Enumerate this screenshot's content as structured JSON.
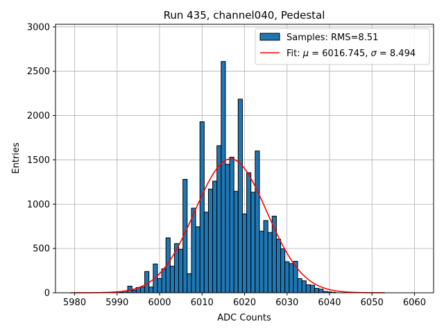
{
  "chart_data": {
    "type": "bar",
    "title": "Run 435, channel040, Pedestal",
    "xlabel": "ADC Counts",
    "ylabel": "Entries",
    "xlim": [
      5975.5,
      6064.5
    ],
    "ylim": [
      0,
      3030
    ],
    "xticks": [
      5980,
      5990,
      6000,
      6010,
      6020,
      6030,
      6040,
      6050,
      6060
    ],
    "yticks": [
      0,
      500,
      1000,
      1500,
      2000,
      2500,
      3000
    ],
    "grid": true,
    "legend_position": "top-right",
    "bar_color": "#1f77b4",
    "fit_color": "#ff0000",
    "histogram": {
      "name": "Samples: RMS=8.51",
      "x": [
        5991,
        5992,
        5993,
        5994,
        5995,
        5996,
        5997,
        5998,
        5999,
        6000,
        6001,
        6002,
        6003,
        6004,
        6005,
        6006,
        6007,
        6008,
        6009,
        6010,
        6011,
        6012,
        6013,
        6014,
        6015,
        6016,
        6017,
        6018,
        6019,
        6020,
        6021,
        6022,
        6023,
        6024,
        6025,
        6026,
        6027,
        6028,
        6029,
        6030,
        6031,
        6032,
        6033,
        6034,
        6035,
        6036,
        6037,
        6038,
        6039,
        6040,
        6041
      ],
      "values": [
        5,
        20,
        75,
        30,
        60,
        65,
        240,
        65,
        325,
        160,
        270,
        620,
        300,
        555,
        490,
        1280,
        215,
        955,
        745,
        1930,
        910,
        1170,
        1260,
        1660,
        2610,
        1450,
        1530,
        1145,
        2185,
        890,
        1355,
        1135,
        1600,
        695,
        815,
        680,
        865,
        605,
        495,
        350,
        330,
        355,
        160,
        135,
        90,
        85,
        50,
        40,
        15,
        10,
        5
      ]
    },
    "fit": {
      "label_prefix": "Fit: ",
      "mu_symbol": "μ",
      "mu_text": " = 6016.745, ",
      "sigma_symbol": "σ",
      "sigma_text": " = 8.494",
      "mu": 6016.745,
      "sigma": 8.494,
      "amplitude": 1510,
      "x_range": [
        5979,
        6053
      ]
    }
  }
}
